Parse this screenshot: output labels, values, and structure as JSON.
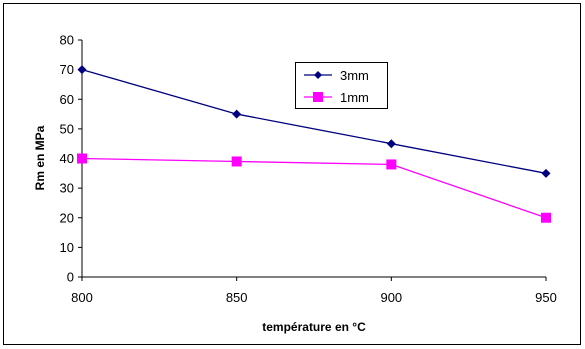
{
  "chart_data": {
    "type": "line",
    "title": "",
    "xlabel": "température en °C",
    "ylabel": "Rm en MPa",
    "x": [
      800,
      850,
      900,
      950
    ],
    "xlim": [
      800,
      950
    ],
    "ylim": [
      0,
      80
    ],
    "yticks": [
      0,
      10,
      20,
      30,
      40,
      50,
      60,
      70,
      80
    ],
    "xtick_labels": [
      "800",
      "850",
      "900",
      "950"
    ],
    "ytick_labels": [
      "0",
      "10",
      "20",
      "30",
      "40",
      "50",
      "60",
      "70",
      "80"
    ],
    "grid": false,
    "legend_position": "upper-right-inside",
    "series": [
      {
        "name": "3mm",
        "values": [
          70,
          55,
          45,
          35
        ],
        "color": "#000080",
        "marker": "diamond"
      },
      {
        "name": "1mm",
        "values": [
          40,
          39,
          38,
          20
        ],
        "color": "#FF00FF",
        "marker": "square"
      }
    ]
  }
}
